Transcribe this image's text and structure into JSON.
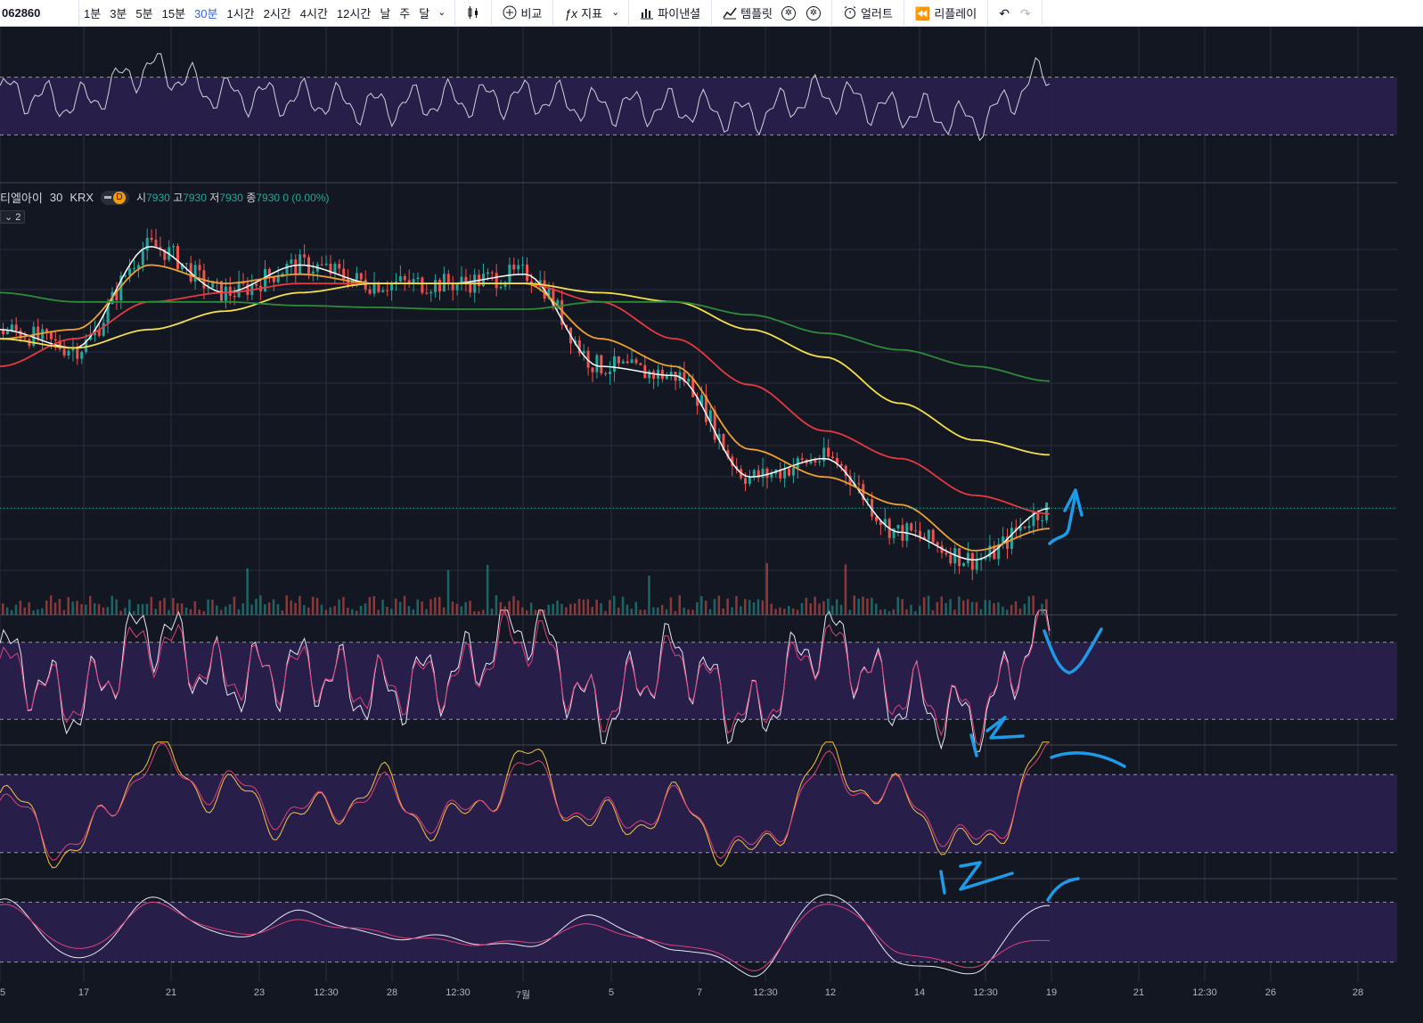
{
  "toolbar": {
    "symbol": "062860",
    "intervals": [
      "1분",
      "3분",
      "5분",
      "15분",
      "30분",
      "1시간",
      "2시간",
      "4시간",
      "12시간",
      "날",
      "주",
      "달"
    ],
    "active_interval": "30분",
    "compare_label": "비교",
    "indicators_label": "지표",
    "financials_label": "파이낸셜",
    "templates_label": "템플릿",
    "alert_label": "얼러트",
    "replay_label": "리플레이"
  },
  "legend": {
    "name": "티엘아이",
    "timeframe": "30",
    "exchange": "KRX",
    "badge": "D",
    "open_key": "시",
    "open": "7930",
    "high_key": "고",
    "high": "7930",
    "low_key": "저",
    "low": "7930",
    "close_key": "종",
    "close": "7930",
    "change": "0 (0.00%)",
    "collapsed_count": "2"
  },
  "x_axis": {
    "labels": [
      "5",
      "17",
      "21",
      "23",
      "12:30",
      "28",
      "12:30",
      "7월",
      "5",
      "7",
      "12:30",
      "12",
      "14",
      "12:30",
      "19",
      "21",
      "12:30",
      "26",
      "28"
    ]
  },
  "colors": {
    "background": "#131722",
    "band": "#2a1f4f",
    "grid": "#2a2e39",
    "up": "#26a69a",
    "down": "#ef5350",
    "ma_white": "#ffffff",
    "ma_orange": "#f0a030",
    "ma_red": "#e5393f",
    "ma_yellow": "#f5e04a",
    "ma_green": "#2e8b3a",
    "annotation": "#1e9be8"
  },
  "chart_data": [
    {
      "type": "line",
      "panel": "top oscillator",
      "x": [
        "5",
        "17",
        "21",
        "23",
        "12:30",
        "28",
        "12:30",
        "7월",
        "5",
        "7",
        "12:30",
        "12",
        "14",
        "12:30",
        "19"
      ],
      "series": [
        {
          "values": [
            60,
            52,
            76,
            58,
            55,
            50,
            54,
            56,
            50,
            49,
            44,
            58,
            47,
            40,
            72
          ]
        }
      ],
      "band": [
        30,
        70
      ]
    },
    {
      "type": "candlestick",
      "panel": "price",
      "title": "티엘아이 · 30 · KRX",
      "x": [
        "5",
        "17",
        "21",
        "23",
        "12:30",
        "28",
        "12:30",
        "7월",
        "5",
        "7",
        "12:30",
        "12",
        "14",
        "12:30",
        "19"
      ],
      "close": [
        8900,
        8800,
        9350,
        9100,
        9250,
        9150,
        9150,
        9200,
        8700,
        8650,
        8100,
        8200,
        7800,
        7650,
        7930
      ],
      "moving_averages": [
        {
          "values": [
            8900,
            8800,
            9350,
            9100,
            9250,
            9150,
            9150,
            9200,
            8700,
            8650,
            8100,
            8200,
            7800,
            7650,
            7930
          ]
        },
        {
          "values": [
            8850,
            8900,
            9250,
            9150,
            9200,
            9150,
            9150,
            9150,
            8850,
            8700,
            8250,
            8100,
            7950,
            7700,
            7820
          ]
        },
        {
          "values": [
            8700,
            8850,
            9050,
            9100,
            9150,
            9150,
            9150,
            9150,
            9050,
            8850,
            8600,
            8350,
            8200,
            8000,
            7900
          ]
        },
        {
          "values": [
            8850,
            8800,
            8900,
            9000,
            9100,
            9150,
            9150,
            9150,
            9100,
            9050,
            8900,
            8750,
            8500,
            8300,
            8220
          ]
        },
        {
          "values": [
            9100,
            9050,
            9050,
            9050,
            9030,
            9020,
            9010,
            9010,
            9050,
            9050,
            8980,
            8880,
            8790,
            8700,
            8620
          ]
        }
      ]
    },
    {
      "type": "line",
      "panel": "stochastic fast",
      "x": [
        "5",
        "17",
        "21",
        "23",
        "12:30",
        "28",
        "12:30",
        "7월",
        "5",
        "7",
        "12:30",
        "12",
        "14",
        "12:30",
        "19"
      ],
      "series": [
        {
          "values": [
            70,
            30,
            90,
            50,
            60,
            40,
            55,
            95,
            25,
            70,
            20,
            85,
            35,
            20,
            95
          ]
        },
        {
          "values": [
            60,
            35,
            80,
            55,
            58,
            45,
            52,
            85,
            30,
            65,
            25,
            78,
            40,
            25,
            90
          ]
        }
      ],
      "band": [
        20,
        80
      ]
    },
    {
      "type": "line",
      "panel": "stochastic mid",
      "x": [
        "5",
        "17",
        "21",
        "23",
        "12:30",
        "28",
        "12:30",
        "7월",
        "5",
        "7",
        "12:30",
        "12",
        "14",
        "12:30",
        "19"
      ],
      "series": [
        {
          "values": [
            60,
            20,
            95,
            65,
            45,
            70,
            40,
            90,
            40,
            55,
            15,
            90,
            60,
            20,
            98
          ]
        },
        {
          "values": [
            55,
            25,
            88,
            70,
            50,
            65,
            45,
            82,
            45,
            55,
            20,
            82,
            62,
            25,
            92
          ]
        }
      ],
      "band": [
        20,
        80
      ]
    },
    {
      "type": "line",
      "panel": "stochastic slow",
      "x": [
        "5",
        "17",
        "21",
        "23",
        "12:30",
        "28",
        "12:30",
        "7월",
        "5",
        "7",
        "12:30",
        "12",
        "14",
        "12:30",
        "19"
      ],
      "series": [
        {
          "values": [
            80,
            20,
            85,
            40,
            75,
            40,
            50,
            30,
            70,
            30,
            10,
            90,
            20,
            15,
            75
          ]
        },
        {
          "values": [
            75,
            30,
            80,
            45,
            65,
            45,
            45,
            35,
            60,
            35,
            15,
            80,
            30,
            20,
            40
          ]
        }
      ],
      "band": [
        20,
        80
      ]
    }
  ]
}
